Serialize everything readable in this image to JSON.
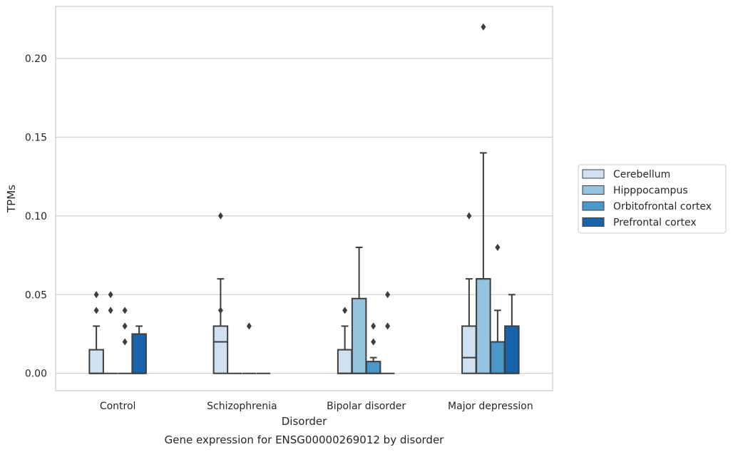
{
  "chart_data": {
    "type": "box",
    "title": "",
    "caption": "Gene expression for ENSG00000269012 by disorder",
    "xlabel": "Disorder",
    "ylabel": "TPMs",
    "ylim": [
      -0.011,
      0.233
    ],
    "yticks": [
      0.0,
      0.05,
      0.1,
      0.15,
      0.2
    ],
    "ytick_labels": [
      "0.00",
      "0.05",
      "0.10",
      "0.15",
      "0.20"
    ],
    "grid": "horizontal",
    "legend_position": "right",
    "categories": [
      "Control",
      "Schizophrenia",
      "Bipolar disorder",
      "Major depression"
    ],
    "series": [
      {
        "name": "Cerebellum",
        "color": "#d0e1f2",
        "boxes": [
          {
            "q1": 0.0,
            "median": 0.0,
            "q3": 0.015,
            "whisker_low": 0.0,
            "whisker_high": 0.03,
            "outliers": [
              0.04,
              0.05
            ]
          },
          {
            "q1": 0.0,
            "median": 0.02,
            "q3": 0.03,
            "whisker_low": 0.0,
            "whisker_high": 0.06,
            "outliers": [
              0.04,
              0.1
            ]
          },
          {
            "q1": 0.0,
            "median": 0.0,
            "q3": 0.015,
            "whisker_low": 0.0,
            "whisker_high": 0.03,
            "outliers": [
              0.04
            ]
          },
          {
            "q1": 0.0,
            "median": 0.01,
            "q3": 0.03,
            "whisker_low": 0.0,
            "whisker_high": 0.06,
            "outliers": [
              0.1
            ]
          }
        ]
      },
      {
        "name": "Hipppocampus",
        "color": "#94c4df",
        "boxes": [
          {
            "q1": 0.0,
            "median": 0.0,
            "q3": 0.0,
            "whisker_low": 0.0,
            "whisker_high": 0.0,
            "outliers": [
              0.04,
              0.05
            ]
          },
          {
            "q1": 0.0,
            "median": 0.0,
            "q3": 0.0,
            "whisker_low": 0.0,
            "whisker_high": 0.0,
            "outliers": []
          },
          {
            "q1": 0.0,
            "median": 0.0,
            "q3": 0.0475,
            "whisker_low": 0.0,
            "whisker_high": 0.08,
            "outliers": []
          },
          {
            "q1": 0.0,
            "median": 0.06,
            "q3": 0.06,
            "whisker_low": 0.0,
            "whisker_high": 0.14,
            "outliers": [
              0.22
            ]
          }
        ]
      },
      {
        "name": "Orbitofrontal cortex",
        "color": "#4a98c9",
        "boxes": [
          {
            "q1": 0.0,
            "median": 0.0,
            "q3": 0.0,
            "whisker_low": 0.0,
            "whisker_high": 0.0,
            "outliers": [
              0.02,
              0.03,
              0.04
            ]
          },
          {
            "q1": 0.0,
            "median": 0.0,
            "q3": 0.0,
            "whisker_low": 0.0,
            "whisker_high": 0.0,
            "outliers": [
              0.03
            ]
          },
          {
            "q1": 0.0,
            "median": 0.0,
            "q3": 0.0075,
            "whisker_low": 0.0,
            "whisker_high": 0.01,
            "outliers": [
              0.02,
              0.03
            ]
          },
          {
            "q1": 0.0,
            "median": 0.0,
            "q3": 0.02,
            "whisker_low": 0.0,
            "whisker_high": 0.04,
            "outliers": [
              0.08
            ]
          }
        ]
      },
      {
        "name": "Prefrontal cortex",
        "color": "#1764ab",
        "boxes": [
          {
            "q1": 0.0,
            "median": 0.0,
            "q3": 0.025,
            "whisker_low": 0.0,
            "whisker_high": 0.03,
            "outliers": []
          },
          {
            "q1": 0.0,
            "median": 0.0,
            "q3": 0.0,
            "whisker_low": 0.0,
            "whisker_high": 0.0,
            "outliers": []
          },
          {
            "q1": 0.0,
            "median": 0.0,
            "q3": 0.0,
            "whisker_low": 0.0,
            "whisker_high": 0.0,
            "outliers": [
              0.03,
              0.05
            ]
          },
          {
            "q1": 0.0,
            "median": 0.0,
            "q3": 0.03,
            "whisker_low": 0.0,
            "whisker_high": 0.05,
            "outliers": []
          }
        ]
      }
    ]
  }
}
